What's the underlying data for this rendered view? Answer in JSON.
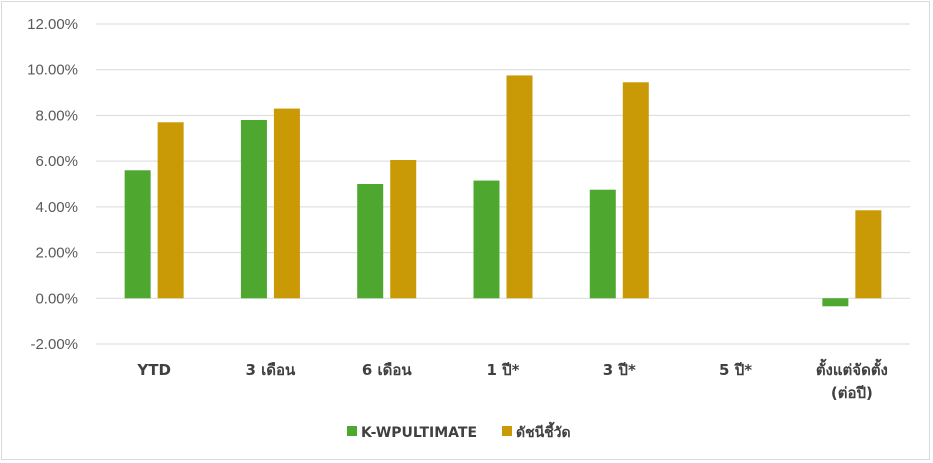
{
  "chart_data": {
    "type": "bar",
    "categories": [
      "YTD",
      "3 เดือน",
      "6 เดือน",
      "1 ปี*",
      "3 ปี*",
      "5 ปี*",
      "ตั้งแต่จัดตั้ง (ต่อปี)"
    ],
    "category_lines": [
      [
        "YTD"
      ],
      [
        "3 เดือน"
      ],
      [
        "6 เดือน"
      ],
      [
        "1 ปี*"
      ],
      [
        "3 ปี*"
      ],
      [
        "5 ปี*"
      ],
      [
        "ตั้งแต่จัดตั้ง",
        "(ต่อปี)"
      ]
    ],
    "series": [
      {
        "name": "K-WPULTIMATE",
        "color": "#4ea72e",
        "values": [
          5.6,
          7.8,
          5.0,
          5.15,
          4.75,
          null,
          -0.35
        ]
      },
      {
        "name": "ดัชนีชี้วัด",
        "color": "#c99a06",
        "values": [
          7.7,
          8.3,
          6.05,
          9.75,
          9.45,
          null,
          3.85
        ]
      }
    ],
    "ylim": [
      -2,
      12
    ],
    "yticks": [
      -2,
      0,
      2,
      4,
      6,
      8,
      10,
      12
    ],
    "ytick_labels": [
      "-2.00%",
      "0.00%",
      "2.00%",
      "4.00%",
      "6.00%",
      "8.00%",
      "10.00%",
      "12.00%"
    ],
    "grid": true,
    "legend_position": "bottom",
    "title": "",
    "xlabel": "",
    "ylabel": ""
  }
}
